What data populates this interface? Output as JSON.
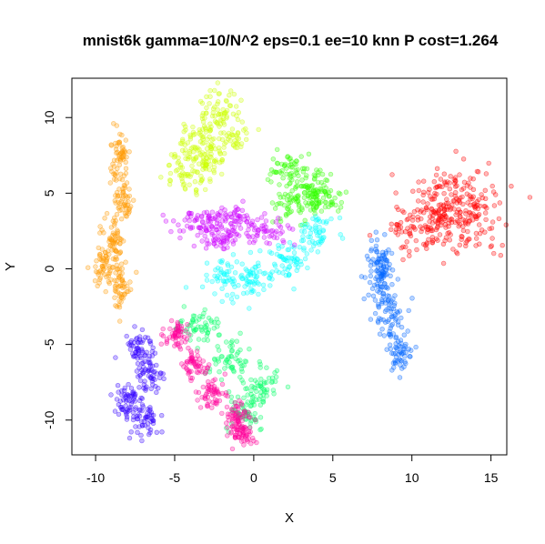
{
  "chart_data": {
    "type": "scatter",
    "title": "mnist6k gamma=10/N^2 eps=0.1 ee=10 knn P cost=1.264",
    "xlabel": "X",
    "ylabel": "Y",
    "xlim": [
      -11.5,
      16.0
    ],
    "ylim": [
      -12.3,
      12.6
    ],
    "x_ticks": [
      -10,
      -5,
      0,
      5,
      10,
      15
    ],
    "y_ticks": [
      -10,
      -5,
      0,
      5,
      10
    ],
    "grid": false,
    "legend": "none",
    "marker": "open-circle",
    "series": [
      {
        "color": "#FF0000",
        "x": [
          11.2,
          12.8,
          14.2,
          10.2,
          13.5,
          11.6
        ],
        "y": [
          4.4,
          5.4,
          4.0,
          2.6,
          2.5,
          3.2
        ],
        "spread": [
          1.35,
          1.25
        ]
      },
      {
        "color": "#FF9900",
        "x": [
          -8.5,
          -8.2,
          -8.8,
          -9.5,
          -8.4
        ],
        "y": [
          7.5,
          4.5,
          2.0,
          0.1,
          -1.0
        ],
        "spread": [
          0.45,
          1.0
        ]
      },
      {
        "color": "#CCFF00",
        "x": [
          -3.5,
          -2.2,
          -1.5,
          -4.4,
          -3.0
        ],
        "y": [
          8.2,
          10.6,
          9.0,
          6.5,
          7.0
        ],
        "spread": [
          0.85,
          1.0
        ]
      },
      {
        "color": "#33FF00",
        "x": [
          2.3,
          3.6,
          4.2,
          2.6
        ],
        "y": [
          6.6,
          5.3,
          4.6,
          4.3
        ],
        "spread": [
          0.85,
          0.7
        ]
      },
      {
        "color": "#00FF66",
        "x": [
          -3.5,
          -1.5,
          0.5,
          -0.5
        ],
        "y": [
          -3.8,
          -5.8,
          -7.8,
          -9.5
        ],
        "spread": [
          0.85,
          0.85
        ]
      },
      {
        "color": "#00FFFF",
        "x": [
          0.0,
          2.2,
          4.0,
          -1.8
        ],
        "y": [
          -0.8,
          0.5,
          2.5,
          -0.7
        ],
        "spread": [
          0.8,
          0.8
        ]
      },
      {
        "color": "#0066FF",
        "x": [
          8.0,
          8.6,
          9.2,
          8.0
        ],
        "y": [
          -1.0,
          -3.0,
          -5.5,
          0.5
        ],
        "spread": [
          0.6,
          1.0
        ]
      },
      {
        "color": "#3300FF",
        "x": [
          -7.3,
          -6.6,
          -8.0,
          -7.0
        ],
        "y": [
          -5.2,
          -7.2,
          -8.8,
          -10.0
        ],
        "spread": [
          0.6,
          0.9
        ]
      },
      {
        "color": "#CC00FF",
        "x": [
          -3.5,
          -1.5,
          0.8,
          -2.2
        ],
        "y": [
          3.0,
          3.4,
          2.5,
          2.0
        ],
        "spread": [
          1.1,
          0.55
        ]
      },
      {
        "color": "#FF0099",
        "x": [
          -4.8,
          -3.6,
          -2.6,
          -1.2,
          -0.8
        ],
        "y": [
          -4.4,
          -6.4,
          -8.2,
          -9.8,
          -10.8
        ],
        "spread": [
          0.55,
          0.6
        ]
      }
    ]
  }
}
